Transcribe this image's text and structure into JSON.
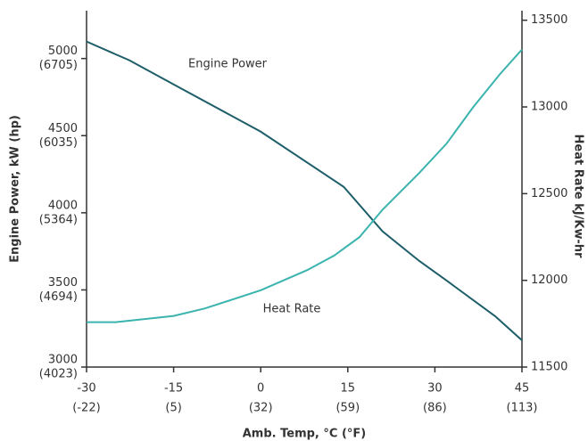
{
  "chart_data": {
    "type": "line",
    "x_label": "Amb. Temp, °C (°F)",
    "y_label": "Engine Power, kW (hp)",
    "y2_label": "Heat Rate kJ/Kw-hr",
    "xlim": [
      -30,
      45
    ],
    "xticks": [
      -30,
      -15,
      0,
      15,
      30,
      45
    ],
    "xtick_secondary": [
      "(-22)",
      "(5)",
      "(32)",
      "(59)",
      "(86)",
      "(113)"
    ],
    "ylim": [
      3000,
      5310
    ],
    "yticks": [
      3000,
      3500,
      4000,
      4500,
      5000
    ],
    "ytick_secondary": [
      "(4023)",
      "(4694)",
      "(5364)",
      "(6035)",
      "(6705)"
    ],
    "y2lim": [
      11500,
      13555
    ],
    "y2ticks": [
      11500,
      12000,
      12500,
      13000,
      13500
    ],
    "series": [
      {
        "name": "Engine Power",
        "color": "#1d5e69",
        "x": [
          -30,
          -22.6,
          -15,
          0,
          14.3,
          21,
          27.3,
          32,
          40.4,
          45
        ],
        "values": [
          5110,
          4988,
          4832,
          4526,
          4168,
          3879,
          3688,
          3561,
          3329,
          3173
        ]
      },
      {
        "name": "Heat Rate",
        "color": "#3bb3ae",
        "axis": "y2",
        "x": [
          -30,
          -25,
          -15,
          -9.6,
          0,
          8,
          12.7,
          17,
          21,
          27.3,
          32,
          36.6,
          41.2,
          45
        ],
        "values": [
          11759,
          11759,
          11795,
          11838,
          11943,
          12059,
          12144,
          12249,
          12408,
          12619,
          12788,
          12999,
          13189,
          13331
        ]
      }
    ]
  }
}
